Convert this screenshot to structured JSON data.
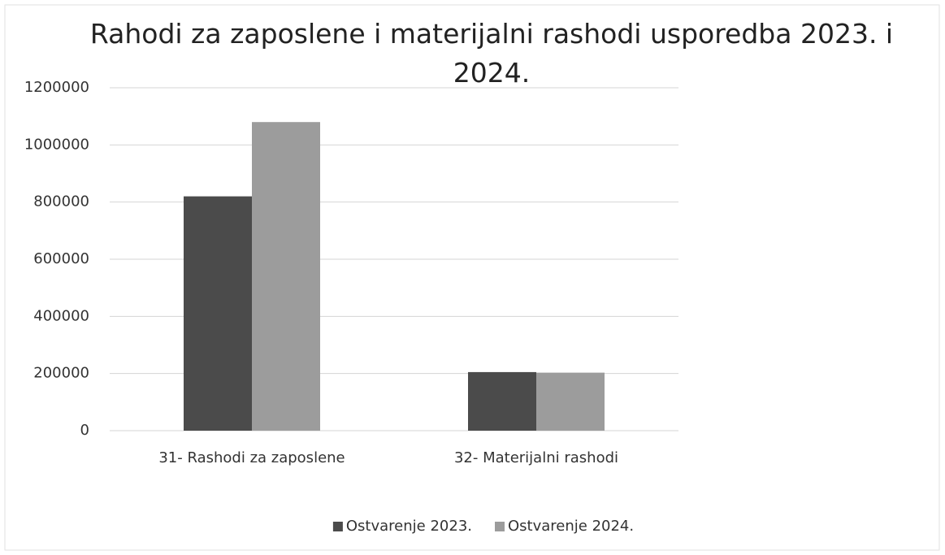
{
  "chart_data": {
    "type": "bar",
    "title": "Rahodi za zaposlene i materijalni rashodi usporedba 2023. i 2024.",
    "categories": [
      "31- Rashodi za zaposlene",
      "32- Materijalni rashodi"
    ],
    "series": [
      {
        "name": "Ostvarenje 2023.",
        "color": "#4b4b4b",
        "values": [
          820000,
          205000
        ]
      },
      {
        "name": "Ostvarenje 2024.",
        "color": "#9c9c9c",
        "values": [
          1080000,
          203000
        ]
      }
    ],
    "ylim": [
      0,
      1200000
    ],
    "yticks": [
      0,
      200000,
      400000,
      600000,
      800000,
      1000000,
      1200000
    ],
    "grid": true,
    "legend": "bottom"
  }
}
